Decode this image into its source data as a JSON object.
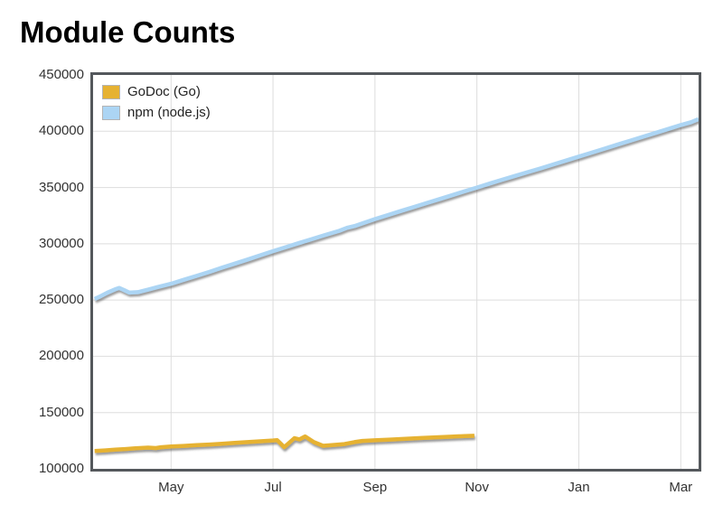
{
  "title": "Module Counts",
  "chart_data": {
    "type": "line",
    "title": "Module Counts",
    "xlabel": "",
    "ylabel": "",
    "x_unit": "month-index (Apr=4 ... Mar=15, fractional = weeks)",
    "xlim": [
      3.47,
      15.35
    ],
    "ylim": [
      100000,
      450000
    ],
    "grid": true,
    "legend_position": "top-left-inside",
    "x_ticks": [
      {
        "x": 5,
        "label": "May"
      },
      {
        "x": 7,
        "label": "Jul"
      },
      {
        "x": 9,
        "label": "Sep"
      },
      {
        "x": 11,
        "label": "Nov"
      },
      {
        "x": 13,
        "label": "Jan"
      },
      {
        "x": 15,
        "label": "Mar"
      }
    ],
    "y_ticks": [
      100000,
      150000,
      200000,
      250000,
      300000,
      350000,
      400000,
      450000
    ],
    "series": [
      {
        "name": "GoDoc (Go)",
        "color": "#e6b232",
        "points": [
          [
            3.5,
            115800
          ],
          [
            3.7,
            116400
          ],
          [
            3.9,
            117000
          ],
          [
            4.1,
            117600
          ],
          [
            4.3,
            118300
          ],
          [
            4.55,
            118900
          ],
          [
            4.7,
            118500
          ],
          [
            4.8,
            119200
          ],
          [
            5.0,
            119800
          ],
          [
            5.25,
            120400
          ],
          [
            5.5,
            121000
          ],
          [
            5.75,
            121600
          ],
          [
            6.0,
            122300
          ],
          [
            6.25,
            123000
          ],
          [
            6.5,
            123800
          ],
          [
            6.75,
            124500
          ],
          [
            7.0,
            125200
          ],
          [
            7.08,
            125500
          ],
          [
            7.22,
            119300
          ],
          [
            7.42,
            127300
          ],
          [
            7.52,
            126200
          ],
          [
            7.63,
            128800
          ],
          [
            7.8,
            123800
          ],
          [
            7.98,
            120500
          ],
          [
            8.15,
            121000
          ],
          [
            8.4,
            122000
          ],
          [
            8.6,
            123800
          ],
          [
            8.75,
            124800
          ],
          [
            9.0,
            125400
          ],
          [
            9.3,
            126000
          ],
          [
            9.6,
            126700
          ],
          [
            9.9,
            127400
          ],
          [
            10.2,
            128000
          ],
          [
            10.5,
            128600
          ],
          [
            10.75,
            129100
          ],
          [
            10.95,
            129400
          ]
        ]
      },
      {
        "name": "npm (node.js)",
        "color": "#acd5f4",
        "points": [
          [
            3.5,
            251000
          ],
          [
            3.62,
            253500
          ],
          [
            3.75,
            256500
          ],
          [
            3.9,
            259500
          ],
          [
            3.98,
            260800
          ],
          [
            4.08,
            258800
          ],
          [
            4.18,
            256600
          ],
          [
            4.35,
            257000
          ],
          [
            4.55,
            259300
          ],
          [
            4.75,
            261700
          ],
          [
            5.0,
            264500
          ],
          [
            5.25,
            268000
          ],
          [
            5.5,
            271500
          ],
          [
            5.75,
            275000
          ],
          [
            6.0,
            278800
          ],
          [
            6.25,
            282400
          ],
          [
            6.5,
            286000
          ],
          [
            6.75,
            289800
          ],
          [
            7.0,
            293500
          ],
          [
            7.25,
            297000
          ],
          [
            7.5,
            300500
          ],
          [
            7.75,
            304000
          ],
          [
            8.0,
            307500
          ],
          [
            8.3,
            311500
          ],
          [
            8.45,
            314200
          ],
          [
            8.6,
            315800
          ],
          [
            9.0,
            322000
          ],
          [
            9.25,
            325500
          ],
          [
            9.5,
            329000
          ],
          [
            9.75,
            332500
          ],
          [
            10.0,
            336000
          ],
          [
            10.25,
            339500
          ],
          [
            10.5,
            343000
          ],
          [
            10.75,
            346500
          ],
          [
            11.0,
            350000
          ],
          [
            11.25,
            353500
          ],
          [
            11.5,
            357000
          ],
          [
            11.75,
            360300
          ],
          [
            12.0,
            363700
          ],
          [
            12.25,
            367000
          ],
          [
            12.5,
            370500
          ],
          [
            12.75,
            374000
          ],
          [
            13.0,
            377500
          ],
          [
            13.25,
            381000
          ],
          [
            13.5,
            384500
          ],
          [
            13.75,
            388000
          ],
          [
            14.0,
            391500
          ],
          [
            14.25,
            395000
          ],
          [
            14.5,
            398500
          ],
          [
            14.75,
            402000
          ],
          [
            15.0,
            405500
          ],
          [
            15.2,
            408000
          ],
          [
            15.35,
            410800
          ]
        ]
      }
    ],
    "style": {
      "frame_color": "#54585c",
      "grid_color": "#dddddd",
      "tick_label_color": "#333333",
      "line_width": 4.5,
      "shadow": "gray drop shadow below lines"
    }
  }
}
